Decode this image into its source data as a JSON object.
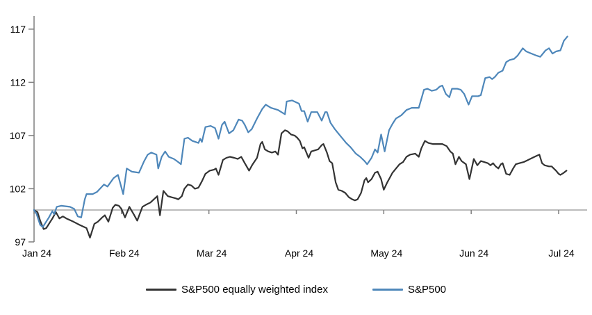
{
  "chart_data": {
    "type": "line",
    "title": "",
    "xlabel": "",
    "ylabel": "",
    "x_unit": "months since Jan 2024 (daily index values, rebased to 100)",
    "xticklabels": [
      "Jan 24",
      "Feb 24",
      "Mar 24",
      "Apr 24",
      "May 24",
      "Jun 24",
      "Jul 24"
    ],
    "yticks": [
      97,
      102,
      107,
      112,
      117
    ],
    "ylim": [
      97,
      118.3
    ],
    "xlim_months": [
      0,
      6.32
    ],
    "baseline_value": 100,
    "grid": false,
    "legend_position": "bottom-center",
    "axis_color": "#7f7f7f",
    "baseline_color": "#a6a6a6",
    "series": [
      {
        "name": "S&P500 equally weighted index",
        "color": "#333333",
        "points": [
          [
            0,
            100
          ],
          [
            0.04,
            99.8
          ],
          [
            0.07,
            99.0
          ],
          [
            0.11,
            98.2
          ],
          [
            0.14,
            98.3
          ],
          [
            0.21,
            99.2
          ],
          [
            0.25,
            99.8
          ],
          [
            0.29,
            99.2
          ],
          [
            0.33,
            99.4
          ],
          [
            0.37,
            99.2
          ],
          [
            0.45,
            98.9
          ],
          [
            0.52,
            98.6
          ],
          [
            0.6,
            98.3
          ],
          [
            0.64,
            97.4
          ],
          [
            0.69,
            98.7
          ],
          [
            0.73,
            98.9
          ],
          [
            0.78,
            99.3
          ],
          [
            0.81,
            99.5
          ],
          [
            0.85,
            98.9
          ],
          [
            0.9,
            100.2
          ],
          [
            0.93,
            100.5
          ],
          [
            0.97,
            100.4
          ],
          [
            1.0,
            100.1
          ],
          [
            1.04,
            99.3
          ],
          [
            1.09,
            100.3
          ],
          [
            1.14,
            99.6
          ],
          [
            1.18,
            99.0
          ],
          [
            1.24,
            100.3
          ],
          [
            1.28,
            100.5
          ],
          [
            1.33,
            100.7
          ],
          [
            1.37,
            101.0
          ],
          [
            1.41,
            101.3
          ],
          [
            1.44,
            99.5
          ],
          [
            1.48,
            101.8
          ],
          [
            1.53,
            101.3
          ],
          [
            1.57,
            101.2
          ],
          [
            1.62,
            101.1
          ],
          [
            1.65,
            101.0
          ],
          [
            1.69,
            101.3
          ],
          [
            1.72,
            102.0
          ],
          [
            1.76,
            102.4
          ],
          [
            1.8,
            102.3
          ],
          [
            1.84,
            102.0
          ],
          [
            1.88,
            102.1
          ],
          [
            1.92,
            102.7
          ],
          [
            1.96,
            103.4
          ],
          [
            2.01,
            103.7
          ],
          [
            2.06,
            103.8
          ],
          [
            2.08,
            103.9
          ],
          [
            2.11,
            103.3
          ],
          [
            2.16,
            104.7
          ],
          [
            2.2,
            104.9
          ],
          [
            2.24,
            105.0
          ],
          [
            2.29,
            104.9
          ],
          [
            2.33,
            104.8
          ],
          [
            2.37,
            105.0
          ],
          [
            2.41,
            104.4
          ],
          [
            2.46,
            103.7
          ],
          [
            2.5,
            104.3
          ],
          [
            2.55,
            104.9
          ],
          [
            2.59,
            106.2
          ],
          [
            2.61,
            106.4
          ],
          [
            2.64,
            105.7
          ],
          [
            2.68,
            105.5
          ],
          [
            2.72,
            105.4
          ],
          [
            2.76,
            105.5
          ],
          [
            2.79,
            105.2
          ],
          [
            2.83,
            107.2
          ],
          [
            2.87,
            107.5
          ],
          [
            2.9,
            107.4
          ],
          [
            2.94,
            107.1
          ],
          [
            2.98,
            107.0
          ],
          [
            3.01,
            106.8
          ],
          [
            3.04,
            106.5
          ],
          [
            3.07,
            105.8
          ],
          [
            3.09,
            105.9
          ],
          [
            3.12,
            105.3
          ],
          [
            3.14,
            104.9
          ],
          [
            3.17,
            105.5
          ],
          [
            3.21,
            105.6
          ],
          [
            3.25,
            105.7
          ],
          [
            3.29,
            106.1
          ],
          [
            3.31,
            106.2
          ],
          [
            3.35,
            105.4
          ],
          [
            3.38,
            104.6
          ],
          [
            3.41,
            104.4
          ],
          [
            3.45,
            102.6
          ],
          [
            3.48,
            101.9
          ],
          [
            3.52,
            101.8
          ],
          [
            3.56,
            101.6
          ],
          [
            3.6,
            101.2
          ],
          [
            3.64,
            101.0
          ],
          [
            3.67,
            100.9
          ],
          [
            3.7,
            101.0
          ],
          [
            3.74,
            101.6
          ],
          [
            3.78,
            102.8
          ],
          [
            3.8,
            103.0
          ],
          [
            3.82,
            102.6
          ],
          [
            3.86,
            102.9
          ],
          [
            3.9,
            103.5
          ],
          [
            3.93,
            103.6
          ],
          [
            3.97,
            102.9
          ],
          [
            4.0,
            101.9
          ],
          [
            4.04,
            102.6
          ],
          [
            4.06,
            102.9
          ],
          [
            4.1,
            103.5
          ],
          [
            4.14,
            103.9
          ],
          [
            4.18,
            104.3
          ],
          [
            4.22,
            104.5
          ],
          [
            4.26,
            105.0
          ],
          [
            4.3,
            105.2
          ],
          [
            4.36,
            105.3
          ],
          [
            4.4,
            105.0
          ],
          [
            4.43,
            105.8
          ],
          [
            4.47,
            106.5
          ],
          [
            4.51,
            106.3
          ],
          [
            4.56,
            106.2
          ],
          [
            4.62,
            106.2
          ],
          [
            4.67,
            106.2
          ],
          [
            4.72,
            106.0
          ],
          [
            4.76,
            105.5
          ],
          [
            4.79,
            105.3
          ],
          [
            4.82,
            104.3
          ],
          [
            4.86,
            105.0
          ],
          [
            4.89,
            104.6
          ],
          [
            4.94,
            104.3
          ],
          [
            4.98,
            102.9
          ],
          [
            5.03,
            104.8
          ],
          [
            5.07,
            104.2
          ],
          [
            5.11,
            104.6
          ],
          [
            5.15,
            104.5
          ],
          [
            5.19,
            104.4
          ],
          [
            5.22,
            104.2
          ],
          [
            5.25,
            104.4
          ],
          [
            5.28,
            104.1
          ],
          [
            5.31,
            103.9
          ],
          [
            5.34,
            104.3
          ],
          [
            5.36,
            104.4
          ],
          [
            5.4,
            103.4
          ],
          [
            5.44,
            103.3
          ],
          [
            5.48,
            103.9
          ],
          [
            5.51,
            104.3
          ],
          [
            5.55,
            104.4
          ],
          [
            5.6,
            104.5
          ],
          [
            5.65,
            104.7
          ],
          [
            5.7,
            104.9
          ],
          [
            5.75,
            105.1
          ],
          [
            5.78,
            105.2
          ],
          [
            5.81,
            104.4
          ],
          [
            5.84,
            104.2
          ],
          [
            5.89,
            104.1
          ],
          [
            5.92,
            104.1
          ],
          [
            5.97,
            103.7
          ],
          [
            6.0,
            103.4
          ],
          [
            6.02,
            103.3
          ],
          [
            6.06,
            103.5
          ],
          [
            6.09,
            103.7
          ]
        ]
      },
      {
        "name": "S&P500",
        "color": "#4e87ba",
        "points": [
          [
            0,
            100
          ],
          [
            0.03,
            99.6
          ],
          [
            0.07,
            98.6
          ],
          [
            0.1,
            98.4
          ],
          [
            0.17,
            99.3
          ],
          [
            0.21,
            99.9
          ],
          [
            0.23,
            99.6
          ],
          [
            0.26,
            100.3
          ],
          [
            0.31,
            100.4
          ],
          [
            0.41,
            100.3
          ],
          [
            0.46,
            100.1
          ],
          [
            0.5,
            99.4
          ],
          [
            0.54,
            99.3
          ],
          [
            0.58,
            101.0
          ],
          [
            0.6,
            101.5
          ],
          [
            0.67,
            101.5
          ],
          [
            0.72,
            101.7
          ],
          [
            0.8,
            102.4
          ],
          [
            0.84,
            102.2
          ],
          [
            0.91,
            103.0
          ],
          [
            0.96,
            103.3
          ],
          [
            1.02,
            101.5
          ],
          [
            1.06,
            103.9
          ],
          [
            1.12,
            103.6
          ],
          [
            1.2,
            103.5
          ],
          [
            1.26,
            104.6
          ],
          [
            1.3,
            105.2
          ],
          [
            1.34,
            105.4
          ],
          [
            1.4,
            105.2
          ],
          [
            1.42,
            103.9
          ],
          [
            1.46,
            105.0
          ],
          [
            1.5,
            105.5
          ],
          [
            1.54,
            105.0
          ],
          [
            1.6,
            104.8
          ],
          [
            1.65,
            104.5
          ],
          [
            1.68,
            104.3
          ],
          [
            1.72,
            106.7
          ],
          [
            1.76,
            106.8
          ],
          [
            1.81,
            106.5
          ],
          [
            1.88,
            106.3
          ],
          [
            1.9,
            106.7
          ],
          [
            1.92,
            106.4
          ],
          [
            1.96,
            107.8
          ],
          [
            2.02,
            107.9
          ],
          [
            2.07,
            107.7
          ],
          [
            2.11,
            106.7
          ],
          [
            2.15,
            108.0
          ],
          [
            2.18,
            108.3
          ],
          [
            2.23,
            107.2
          ],
          [
            2.28,
            107.5
          ],
          [
            2.34,
            108.5
          ],
          [
            2.38,
            108.4
          ],
          [
            2.41,
            108.0
          ],
          [
            2.45,
            107.3
          ],
          [
            2.49,
            107.6
          ],
          [
            2.55,
            108.6
          ],
          [
            2.61,
            109.5
          ],
          [
            2.65,
            109.9
          ],
          [
            2.71,
            109.6
          ],
          [
            2.79,
            109.4
          ],
          [
            2.85,
            109.1
          ],
          [
            2.87,
            109.0
          ],
          [
            2.89,
            110.2
          ],
          [
            2.95,
            110.3
          ],
          [
            3.03,
            110.0
          ],
          [
            3.06,
            109.3
          ],
          [
            3.09,
            109.3
          ],
          [
            3.13,
            108.3
          ],
          [
            3.17,
            109.2
          ],
          [
            3.24,
            109.2
          ],
          [
            3.29,
            108.4
          ],
          [
            3.33,
            109.2
          ],
          [
            3.35,
            109.2
          ],
          [
            3.39,
            108.2
          ],
          [
            3.44,
            107.6
          ],
          [
            3.5,
            107.0
          ],
          [
            3.57,
            106.3
          ],
          [
            3.62,
            105.9
          ],
          [
            3.68,
            105.3
          ],
          [
            3.73,
            105.0
          ],
          [
            3.78,
            104.6
          ],
          [
            3.81,
            104.3
          ],
          [
            3.86,
            104.9
          ],
          [
            3.9,
            105.7
          ],
          [
            3.93,
            105.4
          ],
          [
            3.97,
            107.1
          ],
          [
            4.01,
            105.5
          ],
          [
            4.06,
            107.5
          ],
          [
            4.1,
            108.1
          ],
          [
            4.14,
            108.6
          ],
          [
            4.2,
            108.9
          ],
          [
            4.26,
            109.4
          ],
          [
            4.32,
            109.6
          ],
          [
            4.4,
            109.6
          ],
          [
            4.46,
            111.3
          ],
          [
            4.5,
            111.4
          ],
          [
            4.55,
            111.2
          ],
          [
            4.6,
            111.3
          ],
          [
            4.64,
            111.6
          ],
          [
            4.67,
            111.7
          ],
          [
            4.71,
            110.9
          ],
          [
            4.75,
            110.6
          ],
          [
            4.78,
            111.4
          ],
          [
            4.84,
            111.4
          ],
          [
            4.88,
            111.3
          ],
          [
            4.92,
            110.9
          ],
          [
            4.97,
            109.9
          ],
          [
            5.01,
            110.7
          ],
          [
            5.08,
            110.7
          ],
          [
            5.11,
            110.8
          ],
          [
            5.16,
            112.4
          ],
          [
            5.21,
            112.5
          ],
          [
            5.24,
            112.3
          ],
          [
            5.27,
            112.5
          ],
          [
            5.31,
            112.9
          ],
          [
            5.36,
            113.1
          ],
          [
            5.4,
            113.9
          ],
          [
            5.44,
            114.1
          ],
          [
            5.49,
            114.2
          ],
          [
            5.53,
            114.5
          ],
          [
            5.59,
            115.2
          ],
          [
            5.63,
            114.9
          ],
          [
            5.69,
            114.7
          ],
          [
            5.75,
            114.5
          ],
          [
            5.79,
            114.4
          ],
          [
            5.85,
            115.0
          ],
          [
            5.89,
            115.2
          ],
          [
            5.93,
            114.7
          ],
          [
            5.97,
            114.9
          ],
          [
            6.02,
            115.0
          ],
          [
            6.06,
            115.9
          ],
          [
            6.1,
            116.3
          ]
        ]
      }
    ]
  },
  "legend": {
    "items": [
      {
        "label": "S&P500 equally weighted index"
      },
      {
        "label": "S&P500"
      }
    ]
  }
}
